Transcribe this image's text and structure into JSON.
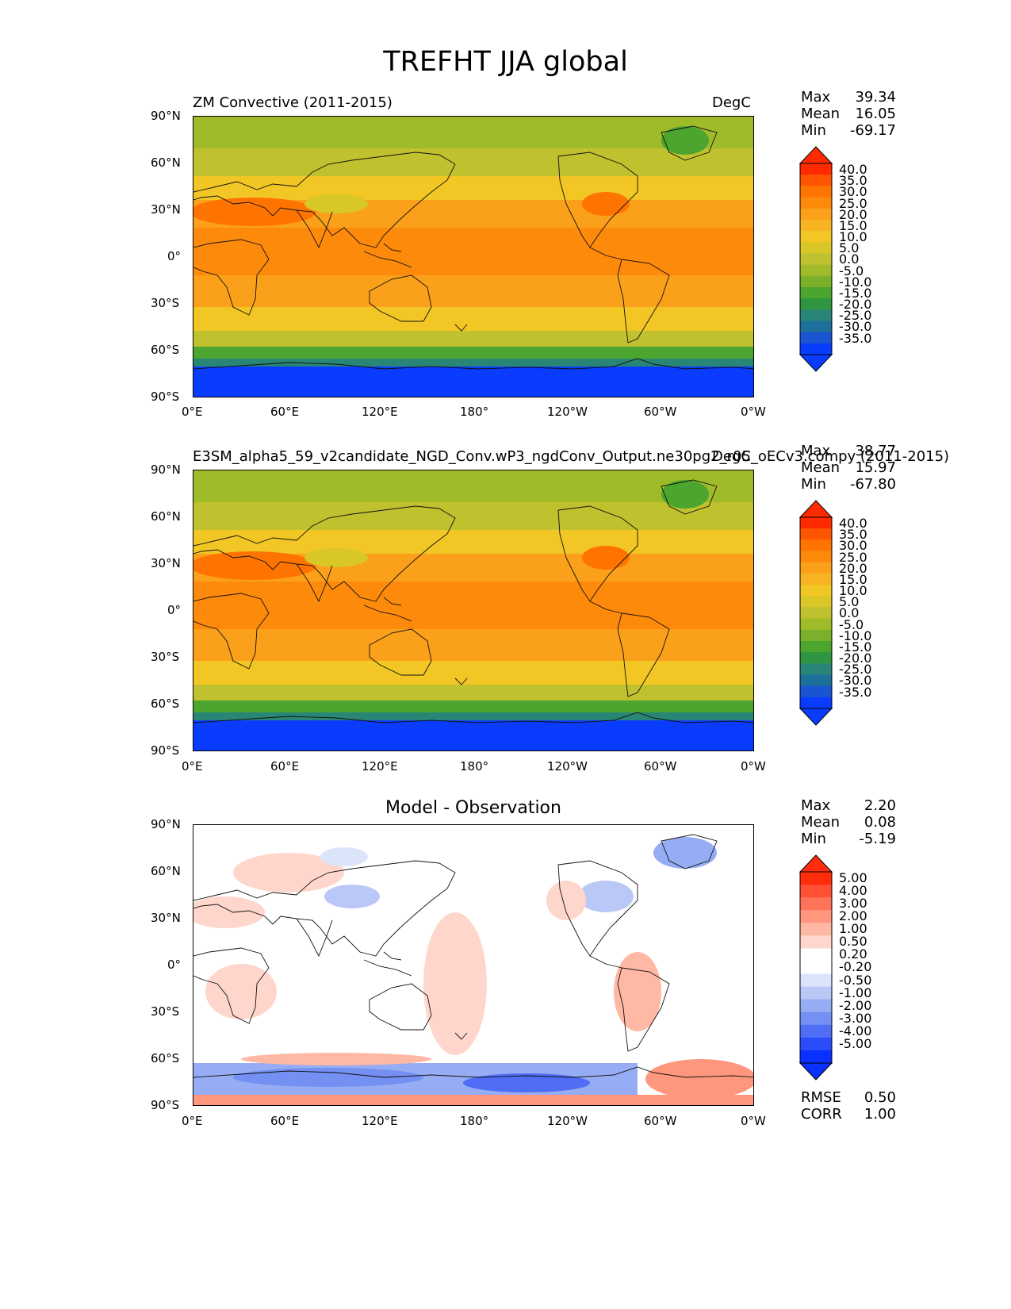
{
  "figure_title": "TREFHT JJA global",
  "axes": {
    "lat_labels": [
      "90°N",
      "60°N",
      "30°N",
      "0°",
      "30°S",
      "60°S",
      "90°S"
    ],
    "lon_labels": [
      "0°E",
      "60°E",
      "120°E",
      "180°",
      "120°W",
      "60°W",
      "0°W"
    ]
  },
  "panels": [
    {
      "id": "test",
      "title_left": "ZM Convective (2011-2015)",
      "title_right": "DegC",
      "title_center": "",
      "stats": [
        {
          "label": "Max",
          "value": "39.34"
        },
        {
          "label": "Mean",
          "value": "16.05"
        },
        {
          "label": "Min",
          "value": "-69.17"
        }
      ],
      "colorbar": {
        "labels": [
          "40.0",
          "35.0",
          "30.0",
          "25.0",
          "20.0",
          "15.0",
          "10.0",
          "5.0",
          "0.0",
          "-5.0",
          "-10.0",
          "-15.0",
          "-20.0",
          "-25.0",
          "-30.0",
          "-35.0"
        ],
        "colors": [
          "#ff2a00",
          "#ff5500",
          "#ff7400",
          "#fd8a0b",
          "#fba01a",
          "#f8b322",
          "#f2c624",
          "#d9c728",
          "#bfc12e",
          "#9fbb2a",
          "#7cb02a",
          "#4ba52e",
          "#2f9541",
          "#298575",
          "#1d7099",
          "#1b54d2",
          "#0a3cff"
        ],
        "over_color": "#ff2a00",
        "under_color": "#0a3cff"
      }
    },
    {
      "id": "reference",
      "title_left": "E3SM_alpha5_59_v2candidate_NGD_Conv.wP3_ngdConv_Output.ne30pg2_r05_oECv3.compy (2011-2015)",
      "title_right": "DegC",
      "title_center": "",
      "stats": [
        {
          "label": "Max",
          "value": "38.77"
        },
        {
          "label": "Mean",
          "value": "15.97"
        },
        {
          "label": "Min",
          "value": "-67.80"
        }
      ],
      "colorbar": {
        "labels": [
          "40.0",
          "35.0",
          "30.0",
          "25.0",
          "20.0",
          "15.0",
          "10.0",
          "5.0",
          "0.0",
          "-5.0",
          "-10.0",
          "-15.0",
          "-20.0",
          "-25.0",
          "-30.0",
          "-35.0"
        ],
        "colors": [
          "#ff2a00",
          "#ff5500",
          "#ff7400",
          "#fd8a0b",
          "#fba01a",
          "#f8b322",
          "#f2c624",
          "#d9c728",
          "#bfc12e",
          "#9fbb2a",
          "#7cb02a",
          "#4ba52e",
          "#2f9541",
          "#298575",
          "#1d7099",
          "#1b54d2",
          "#0a3cff"
        ],
        "over_color": "#ff2a00",
        "under_color": "#0a3cff"
      }
    },
    {
      "id": "diff",
      "title_left": "",
      "title_right": "",
      "title_center": "Model - Observation",
      "stats": [
        {
          "label": "Max",
          "value": "2.20"
        },
        {
          "label": "Mean",
          "value": "0.08"
        },
        {
          "label": "Min",
          "value": "-5.19"
        }
      ],
      "extra_stats": [
        {
          "label": "RMSE",
          "value": "0.50"
        },
        {
          "label": "CORR",
          "value": "1.00"
        }
      ],
      "colorbar": {
        "labels": [
          "5.00",
          "4.00",
          "3.00",
          "2.00",
          "1.00",
          "0.50",
          "0.20",
          "-0.20",
          "-0.50",
          "-1.00",
          "-2.00",
          "-3.00",
          "-4.00",
          "-5.00"
        ],
        "colors": [
          "#ff2d0b",
          "#ff4f35",
          "#ff7358",
          "#ff977f",
          "#ffb8a4",
          "#ffd6cb",
          "#ffffff",
          "#ffffff",
          "#dce4fb",
          "#b9c8f7",
          "#96acf4",
          "#7390f2",
          "#4f6ef5",
          "#2b4cfa",
          "#0a30ff"
        ],
        "over_color": "#ff2d0b",
        "under_color": "#0a30ff"
      }
    }
  ]
}
